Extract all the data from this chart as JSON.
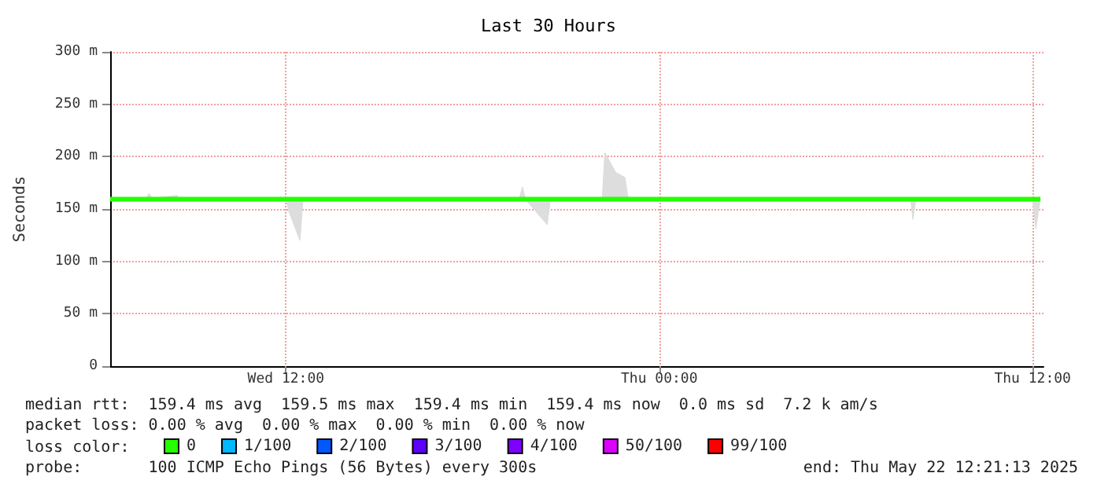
{
  "chart_data": {
    "type": "line",
    "title": "Last 30 Hours",
    "ylabel": "Seconds",
    "legend_title": "loss color:",
    "legend": "bottom left",
    "grid": true,
    "xlim": [
      "2025-05-21T06:21",
      "2025-05-22T12:21"
    ],
    "xticks": [
      {
        "value": "2025-05-21T12:00",
        "label": "Wed 12:00"
      },
      {
        "value": "2025-05-22T00:00",
        "label": "Thu 00:00"
      },
      {
        "value": "2025-05-22T12:00",
        "label": "Thu 12:00"
      }
    ],
    "ylim": [
      0,
      300
    ],
    "yticks": [
      0,
      {
        "value": 50,
        "label": "50 m"
      },
      {
        "value": 100,
        "label": "100 m"
      },
      {
        "value": 150,
        "label": "150 m"
      },
      {
        "value": 200,
        "label": "200 m"
      },
      {
        "value": 250,
        "label": "250 m"
      },
      {
        "value": 300,
        "label": "300 m"
      }
    ],
    "x": [
      "2025-05-21T06:21",
      "2025-05-21T07:30",
      "2025-05-21T07:36",
      "2025-05-21T07:42",
      "2025-05-21T08:30",
      "2025-05-21T08:36",
      "2025-05-21T12:00",
      "2025-05-21T12:06",
      "2025-05-21T12:27",
      "2025-05-21T12:33",
      "2025-05-21T19:30",
      "2025-05-21T19:36",
      "2025-05-21T19:42",
      "2025-05-21T20:24",
      "2025-05-21T20:30",
      "2025-05-21T22:10",
      "2025-05-21T22:15",
      "2025-05-21T22:36",
      "2025-05-21T22:54",
      "2025-05-21T23:00",
      "2025-05-22T08:05",
      "2025-05-22T08:09",
      "2025-05-22T08:15",
      "2025-05-22T12:00",
      "2025-05-22T12:06",
      "2025-05-22T12:15"
    ],
    "series": [
      {
        "name": "0",
        "color": "#26ff00",
        "values": [
          159.4,
          159.4,
          159.4,
          159.4,
          159.4,
          159.4,
          159.4,
          159.4,
          159.4,
          159.4,
          159.4,
          159.4,
          159.4,
          159.4,
          159.4,
          159.4,
          159.4,
          159.4,
          159.4,
          159.4,
          159.4,
          159.4,
          159.4,
          159.4,
          159.4,
          159.4
        ],
        "lower": [
          159,
          159,
          159,
          159,
          159,
          159,
          159,
          147,
          120,
          159,
          159,
          159,
          159,
          135,
          159,
          159,
          159,
          159,
          159,
          159,
          159,
          140,
          159,
          159,
          131,
          159
        ],
        "upper": [
          160,
          160,
          165,
          160,
          163,
          160,
          160,
          160,
          160,
          160,
          160,
          171,
          160,
          160,
          160,
          160,
          204,
          185,
          180,
          160,
          160,
          160,
          160,
          160,
          160,
          160
        ]
      },
      {
        "name": "1/100",
        "color": "#00b8ff",
        "values": [
          null,
          null,
          null,
          null,
          null,
          null,
          null,
          null,
          null,
          null,
          null,
          null,
          null,
          null,
          null,
          null,
          null,
          null,
          null,
          null,
          null,
          null,
          null,
          null,
          null,
          null
        ]
      },
      {
        "name": "2/100",
        "color": "#0059ff",
        "values": [
          null,
          null,
          null,
          null,
          null,
          null,
          null,
          null,
          null,
          null,
          null,
          null,
          null,
          null,
          null,
          null,
          null,
          null,
          null,
          null,
          null,
          null,
          null,
          null,
          null,
          null
        ]
      },
      {
        "name": "3/100",
        "color": "#5e00ff",
        "values": [
          null,
          null,
          null,
          null,
          null,
          null,
          null,
          null,
          null,
          null,
          null,
          null,
          null,
          null,
          null,
          null,
          null,
          null,
          null,
          null,
          null,
          null,
          null,
          null,
          null,
          null
        ]
      },
      {
        "name": "4/100",
        "color": "#7e00ff",
        "values": [
          null,
          null,
          null,
          null,
          null,
          null,
          null,
          null,
          null,
          null,
          null,
          null,
          null,
          null,
          null,
          null,
          null,
          null,
          null,
          null,
          null,
          null,
          null,
          null,
          null,
          null
        ]
      },
      {
        "name": "50/100",
        "color": "#dd00ff",
        "values": [
          null,
          null,
          null,
          null,
          null,
          null,
          null,
          null,
          null,
          null,
          null,
          null,
          null,
          null,
          null,
          null,
          null,
          null,
          null,
          null,
          null,
          null,
          null,
          null,
          null,
          null
        ]
      },
      {
        "name": "99/100",
        "color": "#ff0000",
        "values": [
          null,
          null,
          null,
          null,
          null,
          null,
          null,
          null,
          null,
          null,
          null,
          null,
          null,
          null,
          null,
          null,
          null,
          null,
          null,
          null,
          null,
          null,
          null,
          null,
          null,
          null
        ]
      }
    ],
    "annotations": [
      "median rtt:  159.4 ms avg  159.5 ms max  159.4 ms min  159.4 ms now  0.0 ms sd  7.2 k am/s",
      "packet loss: 0.00 % avg  0.00 % max  0.00 % min  0.00 % now",
      "probe:       100 ICMP Echo Pings (56 Bytes) every 300s",
      "end: Thu May 22 12:21:13 2025"
    ]
  }
}
